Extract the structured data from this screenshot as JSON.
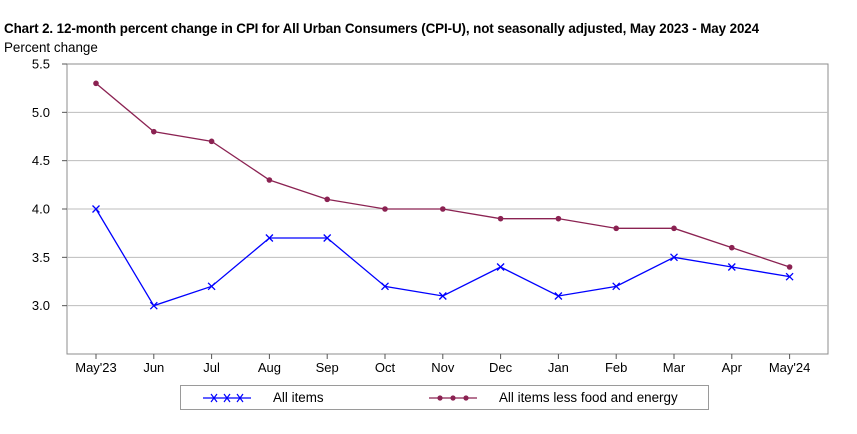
{
  "chart_data": {
    "type": "line",
    "title": "Chart 2. 12-month percent change in CPI for All Urban Consumers (CPI-U), not seasonally adjusted, May 2023 - May 2024",
    "ylabel": "Percent change",
    "xlabel": "",
    "categories": [
      "May'23",
      "Jun",
      "Jul",
      "Aug",
      "Sep",
      "Oct",
      "Nov",
      "Dec",
      "Jan",
      "Feb",
      "Mar",
      "Apr",
      "May'24"
    ],
    "ylim": [
      2.5,
      5.5
    ],
    "yticks": [
      "3.0",
      "3.5",
      "4.0",
      "4.5",
      "5.0",
      "5.5"
    ],
    "ytick_values": [
      3.0,
      3.5,
      4.0,
      4.5,
      5.0,
      5.5
    ],
    "grid": true,
    "legend_position": "bottom",
    "series": [
      {
        "name": "All items",
        "color": "#0000ff",
        "marker": "x",
        "values": [
          4.0,
          3.0,
          3.2,
          3.7,
          3.7,
          3.2,
          3.1,
          3.4,
          3.1,
          3.2,
          3.5,
          3.4,
          3.3
        ]
      },
      {
        "name": "All items less food and energy",
        "color": "#8b2252",
        "marker": "circle",
        "values": [
          5.3,
          4.8,
          4.7,
          4.3,
          4.1,
          4.0,
          4.0,
          3.9,
          3.9,
          3.8,
          3.8,
          3.6,
          3.4
        ]
      }
    ]
  }
}
